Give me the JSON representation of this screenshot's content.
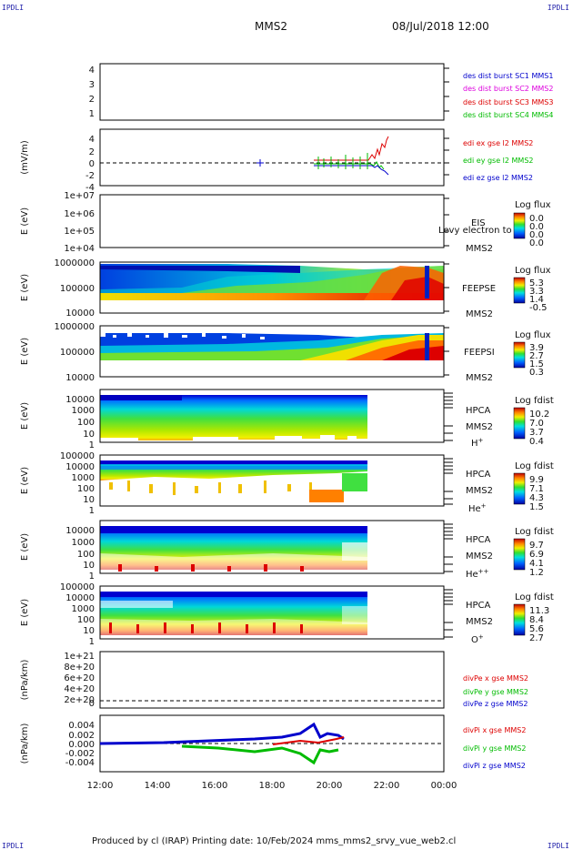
{
  "header": {
    "corner_tl": "IPDLI",
    "corner_tr": "IPDLI",
    "corner_bl": "IPDLI",
    "corner_br": "IPDLI",
    "spacecraft": "MMS2",
    "datetime": "08/Jul/2018 12:00"
  },
  "footer": {
    "text": "Produced by cl (IRAP)   Printing date: 10/Feb/2024   mms_mms2_srvy_vue_web2.cl"
  },
  "x_axis": {
    "ticks": [
      "12:00",
      "14:00",
      "16:00",
      "18:00",
      "20:00",
      "22:00",
      "00:00"
    ],
    "range_hours": [
      12,
      24
    ]
  },
  "colors": {
    "mms1": "#0000cc",
    "mms2": "#dd00dd",
    "mms3": "#dd0000",
    "mms4": "#00bb00",
    "x": "#dd0000",
    "y": "#00bb00",
    "z": "#0000cc"
  },
  "chart_data": [
    {
      "type": "line",
      "id": "dist",
      "ylim": [
        0.5,
        4.5
      ],
      "yticks": [
        "1",
        "2",
        "3",
        "4"
      ],
      "legend": [
        "des dist burst SC1 MMS1",
        "des dist burst SC2 MMS2",
        "des dist burst SC3 MMS3",
        "des dist burst SC4 MMS4"
      ]
    },
    {
      "type": "line",
      "id": "edi",
      "ylabel": "(mV/m)",
      "ylim": [
        -5,
        5.5
      ],
      "yticks": [
        "4",
        "2",
        "0",
        "-2",
        "-4"
      ],
      "legend": [
        "edi ex gse l2 MMS2",
        "edi ey gse l2 MMS2",
        "edi ez gse l2 MMS2"
      ]
    },
    {
      "type": "heatmap",
      "id": "eis",
      "ylabel": "E (eV)",
      "yticks": [
        "1e+07",
        "1e+06",
        "1e+05",
        "1e+04"
      ],
      "instrument": "EIS",
      "sc": "MMS2",
      "overlap_text": "Levy electron to",
      "cbar_title": "Log flux",
      "cbar_ticks": [
        "0.0",
        "0.0",
        "0.0",
        "0.0"
      ]
    },
    {
      "type": "heatmap",
      "id": "feepse",
      "ylabel": "E (eV)",
      "yticks": [
        "1000000",
        "100000",
        "10000"
      ],
      "instrument": "FEEPSE",
      "sc": "MMS2",
      "cbar_title": "Log flux",
      "cbar_ticks": [
        "5.3",
        "3.3",
        "1.4",
        "-0.5"
      ]
    },
    {
      "type": "heatmap",
      "id": "feepsi",
      "ylabel": "E (eV)",
      "yticks": [
        "1000000",
        "100000",
        "10000"
      ],
      "instrument": "FEEPSI",
      "sc": "MMS2",
      "cbar_title": "Log flux",
      "cbar_ticks": [
        "3.9",
        "2.7",
        "1.5",
        "0.3"
      ]
    },
    {
      "type": "heatmap",
      "id": "hpca_h",
      "ylabel": "E (eV)",
      "yticks": [
        "10000",
        "1000",
        "100",
        "10",
        "1"
      ],
      "instrument": "HPCA",
      "sc": "MMS2",
      "species": "H",
      "species_sup": "+",
      "cbar_title": "Log fdist",
      "cbar_ticks": [
        "10.2",
        "7.0",
        "3.7",
        "0.4"
      ]
    },
    {
      "type": "heatmap",
      "id": "hpca_he",
      "ylabel": "E (eV)",
      "yticks": [
        "100000",
        "10000",
        "1000",
        "100",
        "10",
        "1"
      ],
      "instrument": "HPCA",
      "sc": "MMS2",
      "species": "He",
      "species_sup": "+",
      "cbar_title": "Log fdist",
      "cbar_ticks": [
        "9.9",
        "7.1",
        "4.3",
        "1.5"
      ]
    },
    {
      "type": "heatmap",
      "id": "hpca_hepp",
      "ylabel": "E (eV)",
      "yticks": [
        "10000",
        "1000",
        "100",
        "10",
        "1"
      ],
      "instrument": "HPCA",
      "sc": "MMS2",
      "species": "He",
      "species_sup": "++",
      "cbar_title": "Log fdist",
      "cbar_ticks": [
        "9.7",
        "6.9",
        "4.1",
        "1.2"
      ]
    },
    {
      "type": "heatmap",
      "id": "hpca_o",
      "ylabel": "E (eV)",
      "yticks": [
        "100000",
        "10000",
        "1000",
        "100",
        "10",
        "1"
      ],
      "instrument": "HPCA",
      "sc": "MMS2",
      "species": "O",
      "species_sup": "+",
      "cbar_title": "Log fdist",
      "cbar_ticks": [
        "11.3",
        "8.4",
        "5.6",
        "2.7"
      ]
    },
    {
      "type": "line",
      "id": "divpe",
      "ylabel": "(nPa/km)",
      "yticks": [
        "1e+21",
        "8e+20",
        "6e+20",
        "4e+20",
        "2e+20",
        "0"
      ],
      "legend": [
        "divPe x gse MMS2",
        "divPe y gse MMS2",
        "divPe z gse MMS2"
      ]
    },
    {
      "type": "line",
      "id": "divpi",
      "ylabel": "(nPa/km)",
      "ylim": [
        -0.006,
        0.006
      ],
      "yticks": [
        "0.004",
        "0.002",
        "0.000",
        "-0.002",
        "-0.004"
      ],
      "legend": [
        "divPi x gse MMS2",
        "divPi y gse MMS2",
        "divPi z gse MMS2"
      ]
    }
  ]
}
